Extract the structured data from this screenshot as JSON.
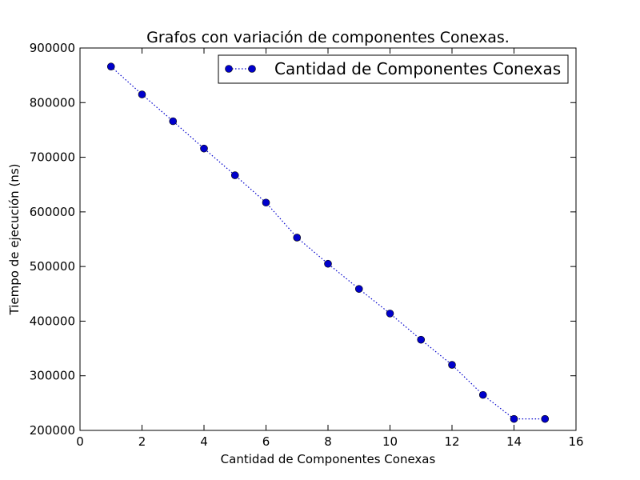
{
  "chart_data": {
    "type": "line",
    "title": "Grafos con variación de componentes Conexas.",
    "xlabel": "Cantidad de Componentes Conexas",
    "ylabel": "Tiempo de ejecución (ns)",
    "xlim": [
      0,
      16
    ],
    "ylim": [
      200000,
      900000
    ],
    "xticks": [
      0,
      2,
      4,
      6,
      8,
      10,
      12,
      14,
      16
    ],
    "yticks": [
      200000,
      300000,
      400000,
      500000,
      600000,
      700000,
      800000,
      900000
    ],
    "grid": false,
    "legend_position": "top-right",
    "series": [
      {
        "name": "Cantidad de Componentes Conexas",
        "color": "#0000cc",
        "line_style": "dotted",
        "marker": "circle",
        "x": [
          1,
          2,
          3,
          4,
          5,
          6,
          7,
          8,
          9,
          10,
          11,
          12,
          13,
          14,
          15
        ],
        "y": [
          866000,
          815000,
          766000,
          716000,
          667000,
          617000,
          553000,
          505000,
          459000,
          414000,
          366000,
          320000,
          265000,
          221000,
          221000
        ]
      }
    ]
  }
}
